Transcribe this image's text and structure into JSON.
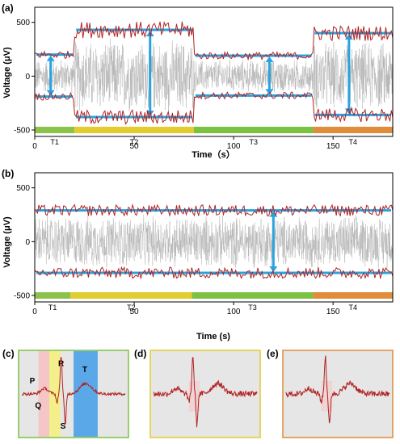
{
  "chart_data": [
    {
      "type": "line",
      "panel": "(a)",
      "xlabel": "Time（s）",
      "ylabel": "Voltage (μV)",
      "xlim": [
        0,
        180
      ],
      "ylim": [
        -560,
        640
      ],
      "xticks": [
        "0",
        "50",
        "100",
        "150"
      ],
      "yticks": [
        "500",
        "0",
        "-500"
      ],
      "segments": [
        {
          "label": "T1",
          "start": 0,
          "end": 20,
          "color": "#8bc34a"
        },
        {
          "label": "T2",
          "start": 20,
          "end": 80,
          "color": "#e3cc2e"
        },
        {
          "label": "T3",
          "start": 80,
          "end": 140,
          "color": "#7cc242"
        },
        {
          "label": "T4",
          "start": 140,
          "end": 180,
          "color": "#e08c3a"
        }
      ],
      "envelope_levels": [
        {
          "segment": "T1",
          "upper": 200,
          "lower": -190
        },
        {
          "segment": "T2",
          "upper": 430,
          "lower": -380
        },
        {
          "segment": "T3",
          "upper": 190,
          "lower": -180
        },
        {
          "segment": "T4",
          "upper": 400,
          "lower": -360
        }
      ]
    },
    {
      "type": "line",
      "panel": "(b)",
      "xlabel": "Time (s)",
      "ylabel": "Voltage (μV)",
      "xlim": [
        0,
        180
      ],
      "ylim": [
        -560,
        640
      ],
      "xticks": [
        "0",
        "50",
        "100",
        "150"
      ],
      "yticks": [
        "500",
        "0",
        "-500"
      ],
      "segments": [
        {
          "label": "T1",
          "start": 0,
          "end": 18,
          "color": "#8bc34a"
        },
        {
          "label": "T2",
          "start": 18,
          "end": 79,
          "color": "#e3cc2e"
        },
        {
          "label": "T3",
          "start": 79,
          "end": 140,
          "color": "#7cc242"
        },
        {
          "label": "T4",
          "start": 140,
          "end": 180,
          "color": "#e08c3a"
        }
      ],
      "envelope_levels": [
        {
          "segment": "all",
          "upper": 290,
          "lower": -290
        }
      ]
    },
    {
      "type": "line",
      "panel": "(c)",
      "waves": [
        "P",
        "Q",
        "R",
        "S",
        "T"
      ],
      "frame_color": "#7cc242"
    },
    {
      "type": "line",
      "panel": "(d)",
      "frame_color": "#e3cc2e"
    },
    {
      "type": "line",
      "panel": "(e)",
      "frame_color": "#e08c3a"
    }
  ]
}
